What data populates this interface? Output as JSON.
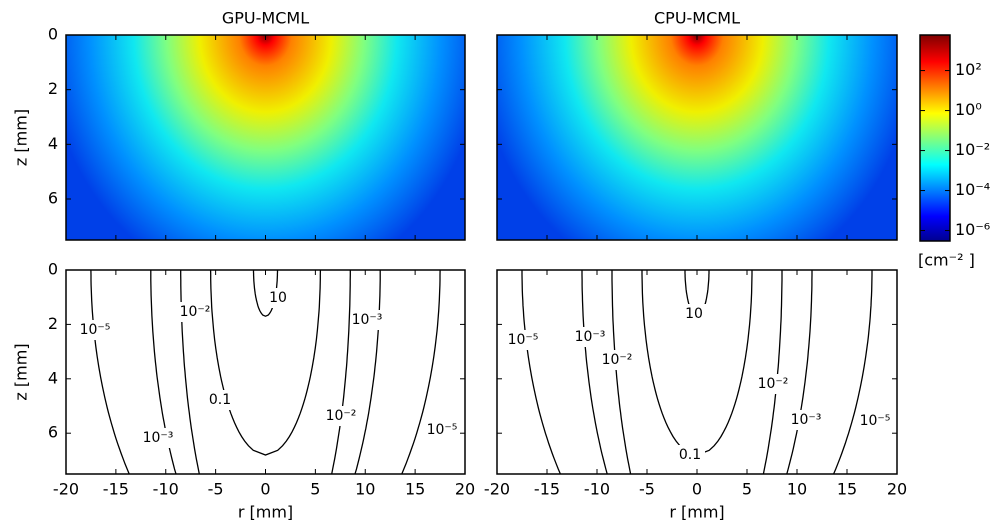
{
  "chart_data": [
    {
      "type": "heatmap",
      "title": "GPU-MCML",
      "ylabel": "z [mm]",
      "xlim": [
        -20,
        20
      ],
      "ylim": [
        0,
        7.5
      ],
      "xticks": [
        -20,
        -15,
        -10,
        -5,
        0,
        5,
        10,
        15,
        20
      ],
      "yticks": [
        0,
        2,
        4,
        6
      ]
    },
    {
      "type": "heatmap",
      "title": "CPU-MCML",
      "xlim": [
        -20,
        20
      ],
      "ylim": [
        0,
        7.5
      ],
      "xticks": [
        -20,
        -15,
        -10,
        -5,
        0,
        5,
        10,
        15,
        20
      ],
      "yticks": [
        0,
        2,
        4,
        6
      ]
    },
    {
      "type": "contour",
      "ylabel": "z [mm]",
      "xlabel": "r [mm]",
      "xlim": [
        -20,
        20
      ],
      "ylim": [
        0,
        7.5
      ],
      "xticks": [
        -20,
        -15,
        -10,
        -5,
        0,
        5,
        10,
        15,
        20
      ],
      "yticks": [
        0,
        2,
        4,
        6
      ],
      "levels": [
        10,
        0.1,
        0.01,
        0.001,
        1e-05
      ],
      "contour_labels": [
        "10⁻⁵",
        "10⁻²",
        "10",
        "10⁻³",
        "0.1",
        "10⁻²",
        "10⁻³",
        "10⁻⁵"
      ]
    },
    {
      "type": "contour",
      "xlabel": "r [mm]",
      "xlim": [
        -20,
        20
      ],
      "ylim": [
        0,
        7.5
      ],
      "xticks": [
        -20,
        -15,
        -10,
        -5,
        0,
        5,
        10,
        15,
        20
      ],
      "yticks": [
        0,
        2,
        4,
        6
      ],
      "levels": [
        10,
        0.1,
        0.01,
        0.001,
        1e-05
      ],
      "contour_labels": [
        "10⁻⁵",
        "10⁻³",
        "10",
        "10⁻²",
        "10⁻²",
        "10⁻³",
        "10⁻⁵",
        "0.1"
      ]
    },
    {
      "type": "colorbar",
      "label": "[cm⁻² ]",
      "zlim": [
        3e-07,
        6000
      ],
      "log": true,
      "ticks": [
        {
          "value": 100,
          "label": "10²"
        },
        {
          "value": 1,
          "label": "10⁰"
        },
        {
          "value": 0.01,
          "label": "10⁻²"
        },
        {
          "value": 0.0001,
          "label": "10⁻⁴"
        },
        {
          "value": 1e-06,
          "label": "10⁻⁶"
        }
      ]
    }
  ]
}
